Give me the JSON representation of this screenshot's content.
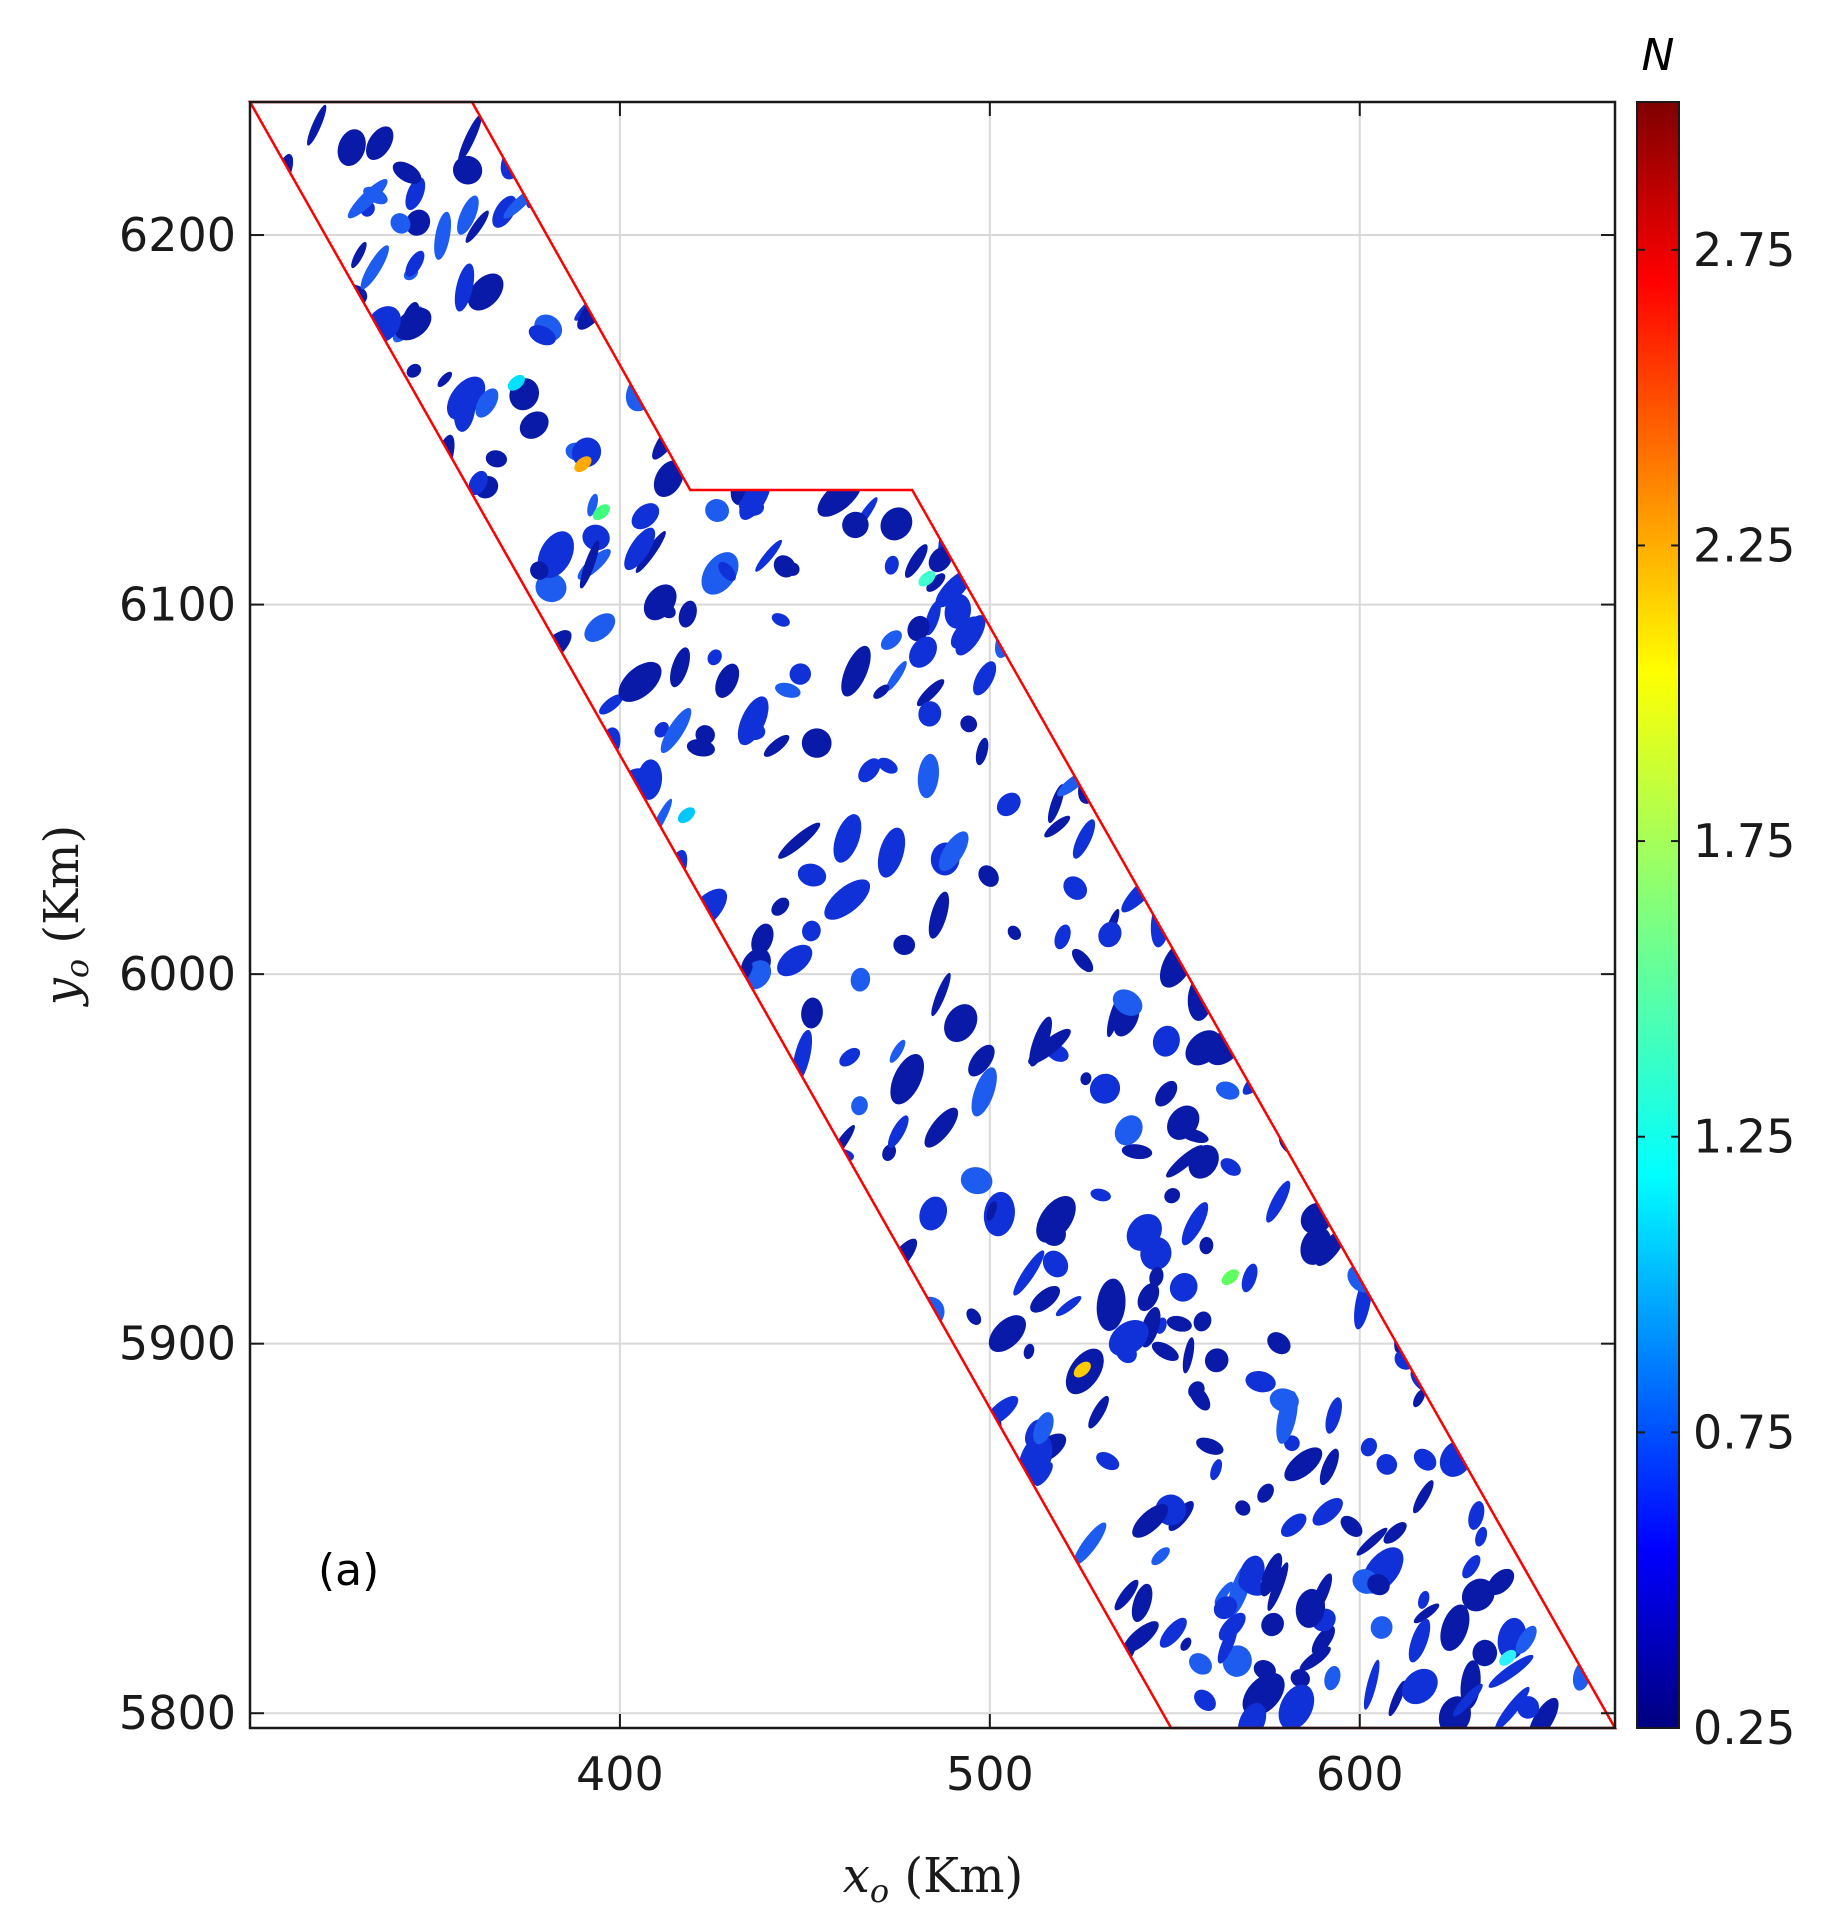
{
  "chart_data": {
    "type": "heatmap",
    "title": "",
    "panel_label": "(a)",
    "xlabel": {
      "var": "x",
      "sub": "o",
      "unit": " (Km)"
    },
    "ylabel": {
      "var": "y",
      "sub": "o",
      "unit": " (Km)"
    },
    "xlim": [
      300,
      669
    ],
    "ylim": [
      5796,
      6236
    ],
    "xticks": [
      400,
      500,
      600
    ],
    "yticks": [
      5800,
      5900,
      6000,
      6100,
      6200
    ],
    "grid": true,
    "colorbar": {
      "title": "N",
      "colormap": "jet",
      "range": [
        0.25,
        3.0
      ],
      "ticks": [
        "0.25",
        "0.75",
        "1.25",
        "1.75",
        "2.25",
        "2.75"
      ]
    },
    "region_outline": {
      "color": "#ff0000",
      "vertices": [
        [
          300,
          6236
        ],
        [
          360,
          6236
        ],
        [
          419,
          6131
        ],
        [
          479,
          6131
        ],
        [
          669,
          5796
        ],
        [
          549,
          5796
        ]
      ]
    }
  }
}
